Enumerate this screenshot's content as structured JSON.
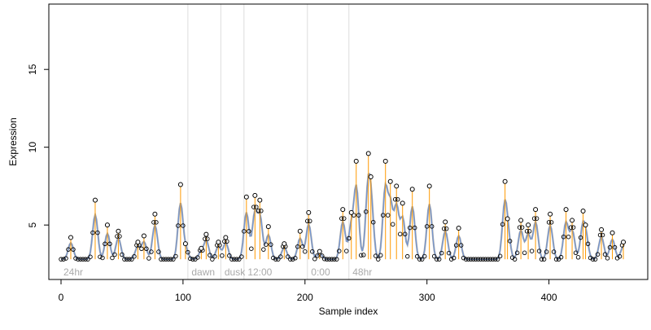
{
  "chart_data": {
    "type": "scatter",
    "title": "",
    "xlabel": "Sample index",
    "ylabel": "Expression",
    "xlim": [
      -10,
      481
    ],
    "ylim": [
      1.5,
      19.2
    ],
    "x_ticks": [
      0,
      100,
      200,
      300,
      400
    ],
    "x_tick_labels": [
      "0",
      "100",
      "200",
      "300",
      "400"
    ],
    "y_ticks": [
      5,
      10,
      15
    ],
    "y_tick_labels": [
      "5",
      "10",
      "15"
    ],
    "grid": false,
    "legend": "none",
    "baseline": 2.8,
    "colors": {
      "points": "#000000",
      "stem": "#ff9900",
      "smooth_high": "#aaaaaa",
      "smooth_low": "#6d93d6",
      "separator": "#dddddd",
      "region_label": "#aaaaaa"
    },
    "regions": [
      {
        "label": "24hr",
        "start": 0
      },
      {
        "label": "dawn",
        "start": 105
      },
      {
        "label": "dusk",
        "start": 132
      },
      {
        "label": "12:00",
        "start": 151
      },
      {
        "label": "0:00",
        "start": 203
      },
      {
        "label": "48hr",
        "start": 237
      }
    ],
    "peaks": [
      {
        "x": 8,
        "y": 4.2
      },
      {
        "x": 28,
        "y": 6.6
      },
      {
        "x": 38,
        "y": 5.0
      },
      {
        "x": 47,
        "y": 4.6
      },
      {
        "x": 63,
        "y": 3.9
      },
      {
        "x": 68,
        "y": 4.3
      },
      {
        "x": 77,
        "y": 5.7
      },
      {
        "x": 98,
        "y": 7.6
      },
      {
        "x": 102,
        "y": 3.8
      },
      {
        "x": 115,
        "y": 3.5
      },
      {
        "x": 119,
        "y": 4.4
      },
      {
        "x": 129,
        "y": 3.9
      },
      {
        "x": 135,
        "y": 4.2
      },
      {
        "x": 152,
        "y": 6.8
      },
      {
        "x": 159,
        "y": 6.9
      },
      {
        "x": 163,
        "y": 6.6
      },
      {
        "x": 170,
        "y": 4.9
      },
      {
        "x": 183,
        "y": 3.8
      },
      {
        "x": 196,
        "y": 4.6
      },
      {
        "x": 203,
        "y": 5.8
      },
      {
        "x": 212,
        "y": 3.3
      },
      {
        "x": 231,
        "y": 6.0
      },
      {
        "x": 238,
        "y": 5.8
      },
      {
        "x": 242,
        "y": 9.1
      },
      {
        "x": 252,
        "y": 9.6
      },
      {
        "x": 254,
        "y": 8.1
      },
      {
        "x": 266,
        "y": 9.1
      },
      {
        "x": 270,
        "y": 7.8
      },
      {
        "x": 275,
        "y": 7.5
      },
      {
        "x": 280,
        "y": 6.4
      },
      {
        "x": 288,
        "y": 7.3
      },
      {
        "x": 302,
        "y": 7.5
      },
      {
        "x": 315,
        "y": 5.2
      },
      {
        "x": 326,
        "y": 4.8
      },
      {
        "x": 364,
        "y": 7.8
      },
      {
        "x": 366,
        "y": 5.4
      },
      {
        "x": 377,
        "y": 5.3
      },
      {
        "x": 383,
        "y": 5.0
      },
      {
        "x": 389,
        "y": 6.0
      },
      {
        "x": 401,
        "y": 5.7
      },
      {
        "x": 414,
        "y": 6.0
      },
      {
        "x": 419,
        "y": 5.3
      },
      {
        "x": 428,
        "y": 5.9
      },
      {
        "x": 430,
        "y": 5.0
      },
      {
        "x": 443,
        "y": 4.7
      },
      {
        "x": 452,
        "y": 4.5
      },
      {
        "x": 461,
        "y": 3.9
      }
    ]
  }
}
